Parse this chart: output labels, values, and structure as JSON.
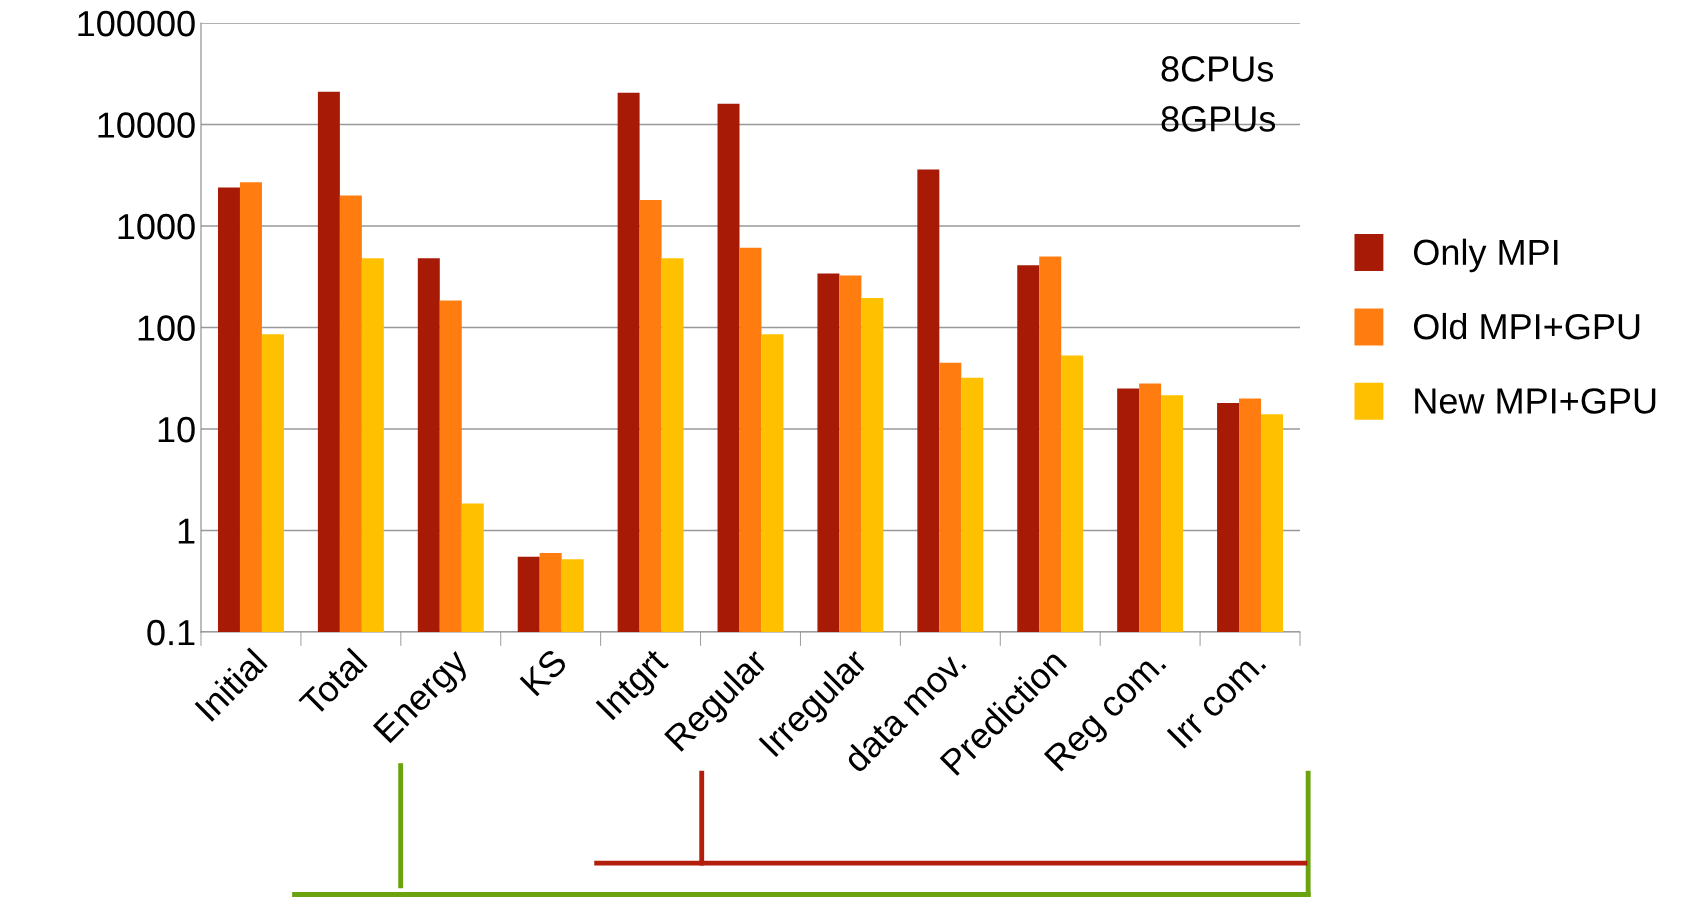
{
  "chart_data": {
    "type": "bar",
    "log": "y",
    "ylim": [
      0.1,
      100000
    ],
    "yticks": [
      0.1,
      1,
      10,
      100,
      1000,
      10000,
      100000
    ],
    "grid": "y",
    "legend": "right",
    "categories": [
      "Initial",
      "Total",
      "Energy",
      "KS",
      "Intgrt",
      "Regular",
      "Irregular",
      "data mov.",
      "Prediction",
      "Reg com.",
      "Irr com."
    ],
    "series": [
      {
        "name": "Only MPI",
        "color": "#a61a06",
        "values": [
          2400,
          21000,
          480,
          0.55,
          20500,
          16000,
          340,
          3600,
          410,
          25,
          18
        ]
      },
      {
        "name": "Old MPI+GPU",
        "color": "#ff7c10",
        "values": [
          2700,
          2000,
          185,
          0.6,
          1800,
          610,
          325,
          45,
          500,
          28,
          20
        ]
      },
      {
        "name": "New MPI+GPU",
        "color": "#ffc000",
        "values": [
          86,
          480,
          1.85,
          0.52,
          480,
          86,
          195,
          32,
          53,
          21.5,
          14
        ]
      }
    ],
    "annotations": [
      "8CPUs",
      "8GPUs"
    ]
  }
}
